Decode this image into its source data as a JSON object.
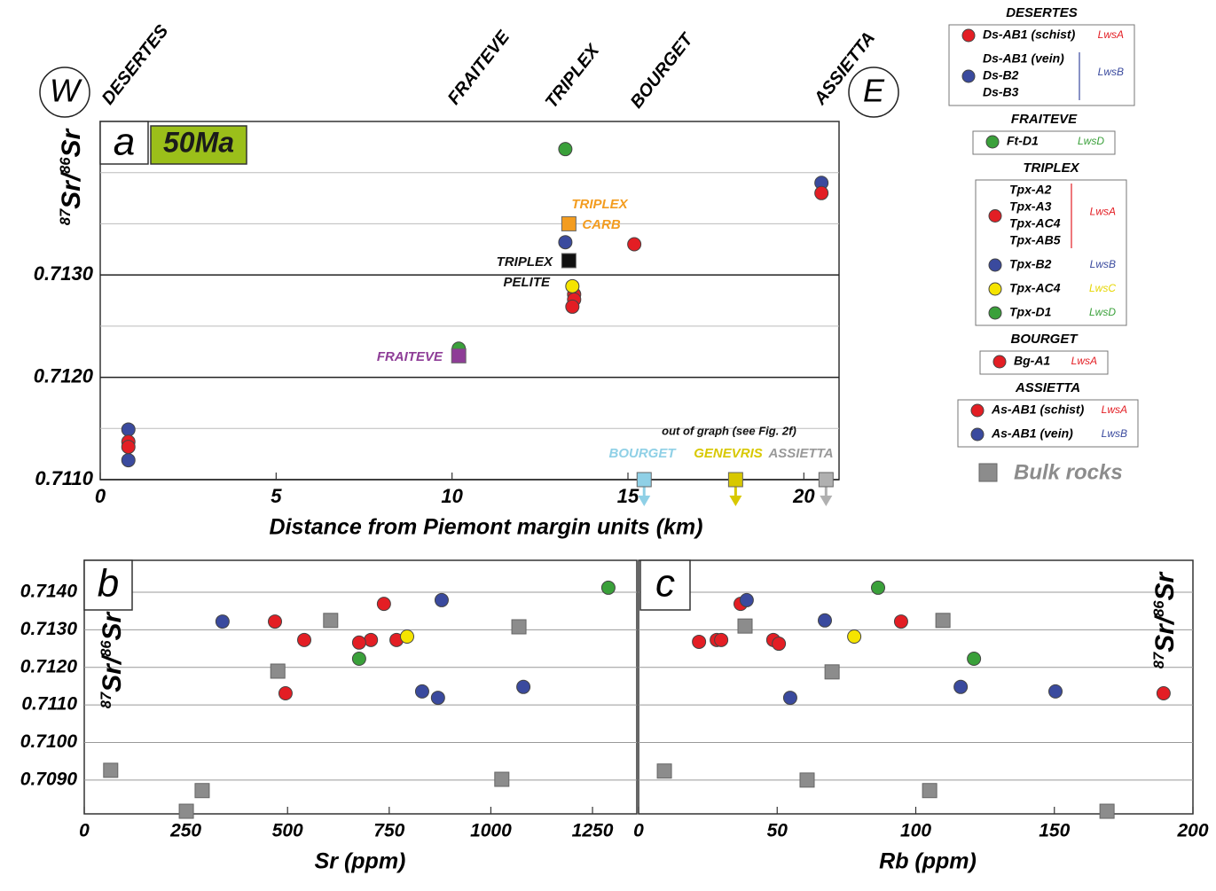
{
  "chart_data": [
    {
      "type": "scatter",
      "panel_label": "a",
      "age_label": "50Ma",
      "x_label": "Distance from Piemont margin units (km)",
      "y_label": [
        "87",
        "Sr/",
        "86",
        "Sr"
      ],
      "xlim": [
        0,
        21
      ],
      "ylim": [
        0.711,
        0.7145
      ],
      "xticks": [
        0,
        5,
        10,
        15,
        20
      ],
      "yticks": [
        {
          "value": 0.711,
          "label": "0.7110"
        },
        {
          "value": 0.712,
          "label": "0.7120"
        },
        {
          "value": 0.713,
          "label": "0.7130"
        }
      ],
      "ygrid": [
        0.7115,
        0.7125,
        0.7135,
        0.714
      ],
      "west": "W",
      "east": "E",
      "locations": [
        "DESERTES",
        "FRAITEVE",
        "TRIPLEX",
        "BOURGET",
        "ASSIETTA"
      ],
      "annotations": [
        {
          "text": "TRIPLEX",
          "color": "#f39c1f"
        },
        {
          "text": "CARB",
          "color": "#f39c1f"
        },
        {
          "text": "TRIPLEX",
          "color": "#111111"
        },
        {
          "text": "PELITE",
          "color": "#111111"
        },
        {
          "text": "FRAITEVE",
          "color": "#8e3d97"
        },
        {
          "text": "out of graph (see Fig. 2f)",
          "color": "#111111"
        },
        {
          "text": "BOURGET",
          "color": "#8fd0e6"
        },
        {
          "text": "GENEVRIS",
          "color": "#d8c800"
        },
        {
          "text": "ASSIETTA",
          "color": "#999999"
        }
      ],
      "series": [
        {
          "color": "#3a4a9e",
          "marker": "circle",
          "x": [
            0.8,
            0.8,
            13.22,
            20.5
          ],
          "values": [
            0.71149,
            0.71119,
            0.71332,
            0.7139
          ]
        },
        {
          "color": "#e31e24",
          "marker": "circle",
          "x": [
            0.8,
            0.8,
            13.47,
            13.47,
            13.42,
            15.18,
            20.5
          ],
          "values": [
            0.71137,
            0.71132,
            0.71281,
            0.71276,
            0.71269,
            0.7133,
            0.7138
          ]
        },
        {
          "color": "#3aa03a",
          "marker": "circle",
          "x": [
            10.19,
            13.22
          ],
          "values": [
            0.71228,
            0.71423
          ]
        },
        {
          "color": "#f5e400",
          "marker": "circle",
          "x": [
            13.42
          ],
          "values": [
            0.71289
          ]
        },
        {
          "color": "#f39c1f",
          "marker": "square",
          "x": [
            13.32
          ],
          "values": [
            0.7135
          ]
        },
        {
          "color": "#111111",
          "marker": "square",
          "x": [
            13.32
          ],
          "values": [
            0.71314
          ]
        },
        {
          "color": "#8e3d97",
          "marker": "square",
          "x": [
            10.19
          ],
          "values": [
            0.71221
          ]
        },
        {
          "color": "#8fd0e6",
          "marker": "square",
          "arrow": true,
          "x": [
            15.46
          ],
          "values": [
            0.711
          ]
        },
        {
          "color": "#d8c800",
          "marker": "square",
          "arrow": true,
          "x": [
            18.06
          ],
          "values": [
            0.711
          ]
        },
        {
          "color": "#b0b0b0",
          "marker": "square",
          "arrow": true,
          "x": [
            20.63
          ],
          "values": [
            0.711
          ]
        }
      ]
    },
    {
      "type": "scatter",
      "panel_label": "b",
      "x_label": "Sr (ppm)",
      "y_label": [
        "87",
        "Sr/",
        "86",
        "Sr"
      ],
      "xlim": [
        0,
        1359
      ],
      "ylim": [
        0.7081,
        0.71485
      ],
      "xticks": [
        0,
        250,
        500,
        750,
        1000,
        1250
      ],
      "yticks": [
        {
          "value": 0.709,
          "label": "0.7090"
        },
        {
          "value": 0.71,
          "label": "0.7100"
        },
        {
          "value": 0.711,
          "label": "0.7110"
        },
        {
          "value": 0.712,
          "label": "0.7120"
        },
        {
          "value": 0.713,
          "label": "0.7130"
        },
        {
          "value": 0.714,
          "label": "0.7140"
        }
      ],
      "series": [
        {
          "color": "#8c8c8c",
          "marker": "square",
          "x": [
            606,
            476,
            1069,
            65,
            290,
            251,
            1027
          ],
          "values": [
            0.71325,
            0.7119,
            0.71308,
            0.70926,
            0.70872,
            0.70817,
            0.70902
          ]
        },
        {
          "color": "#e31e24",
          "marker": "circle",
          "x": [
            469,
            541,
            737,
            768,
            705,
            676,
            495
          ],
          "values": [
            0.71322,
            0.71273,
            0.71369,
            0.71273,
            0.71273,
            0.71266,
            0.71131
          ]
        },
        {
          "color": "#3a4a9e",
          "marker": "circle",
          "x": [
            340,
            879,
            831,
            870,
            1080
          ],
          "values": [
            0.71322,
            0.71379,
            0.71136,
            0.71119,
            0.71148
          ]
        },
        {
          "color": "#3aa03a",
          "marker": "circle",
          "x": [
            676,
            1289
          ],
          "values": [
            0.71223,
            0.71412
          ]
        },
        {
          "color": "#f5e400",
          "marker": "circle",
          "x": [
            794
          ],
          "values": [
            0.71282
          ]
        }
      ]
    },
    {
      "type": "scatter",
      "panel_label": "c",
      "x_label": "Rb (ppm)",
      "y_label": [
        "87",
        "Sr/",
        "86",
        "Sr"
      ],
      "xlim": [
        0,
        200
      ],
      "ylim": [
        0.7081,
        0.71485
      ],
      "xticks": [
        0,
        50,
        100,
        150,
        200
      ],
      "ygrid": [
        0.709,
        0.71,
        0.711,
        0.712,
        0.713,
        0.714
      ],
      "series": [
        {
          "color": "#8c8c8c",
          "marker": "square",
          "x": [
            38.4,
            109.8,
            69.8,
            9.3,
            60.8,
            105,
            169
          ],
          "values": [
            0.7131,
            0.71325,
            0.71188,
            0.70924,
            0.709,
            0.70872,
            0.70817
          ]
        },
        {
          "color": "#e31e24",
          "marker": "circle",
          "x": [
            21.8,
            28.2,
            29.8,
            36.8,
            48.6,
            50.6,
            94.7,
            189.4
          ],
          "values": [
            0.71268,
            0.71273,
            0.71273,
            0.71369,
            0.71273,
            0.71263,
            0.71322,
            0.71131
          ]
        },
        {
          "color": "#3a4a9e",
          "marker": "circle",
          "x": [
            39,
            67.2,
            54.7,
            116.2,
            150.4
          ],
          "values": [
            0.71379,
            0.71325,
            0.71119,
            0.71148,
            0.71136
          ]
        },
        {
          "color": "#3aa03a",
          "marker": "circle",
          "x": [
            86.4,
            121
          ],
          "values": [
            0.71412,
            0.71223
          ]
        },
        {
          "color": "#f5e400",
          "marker": "circle",
          "x": [
            77.8
          ],
          "values": [
            0.71282
          ]
        }
      ]
    }
  ],
  "legend": {
    "groups": [
      {
        "title": "DESERTES",
        "entries": [
          {
            "labels": [
              "Ds-AB1 (schist)"
            ],
            "tag": "LwsA",
            "color": "#e31e24"
          },
          {
            "labels": [
              "Ds-AB1 (vein)",
              "Ds-B2",
              "Ds-B3"
            ],
            "tag": "LwsB",
            "color": "#3a4a9e"
          }
        ]
      },
      {
        "title": "FRAITEVE",
        "entries": [
          {
            "labels": [
              "Ft-D1"
            ],
            "tag": "LwsD",
            "color": "#3aa03a"
          }
        ]
      },
      {
        "title": "TRIPLEX",
        "entries": [
          {
            "labels": [
              "Tpx-A2",
              "Tpx-A3",
              "Tpx-AC4",
              "Tpx-AB5"
            ],
            "tag": "LwsA",
            "color": "#e31e24"
          },
          {
            "labels": [
              "Tpx-B2"
            ],
            "tag": "LwsB",
            "color": "#3a4a9e"
          },
          {
            "labels": [
              "Tpx-AC4"
            ],
            "tag": "LwsC",
            "color": "#f5e400"
          },
          {
            "labels": [
              "Tpx-D1"
            ],
            "tag": "LwsD",
            "color": "#3aa03a"
          }
        ]
      },
      {
        "title": "BOURGET",
        "entries": [
          {
            "labels": [
              "Bg-A1"
            ],
            "tag": "LwsA",
            "color": "#e31e24"
          }
        ]
      },
      {
        "title": "ASSIETTA",
        "entries": [
          {
            "labels": [
              "As-AB1 (schist)"
            ],
            "tag": "LwsA",
            "color": "#e31e24"
          },
          {
            "labels": [
              "As-AB1 (vein)"
            ],
            "tag": "LwsB",
            "color": "#3a4a9e"
          }
        ]
      }
    ],
    "bulk": {
      "label": "Bulk rocks",
      "color": "#8c8c8c"
    }
  }
}
